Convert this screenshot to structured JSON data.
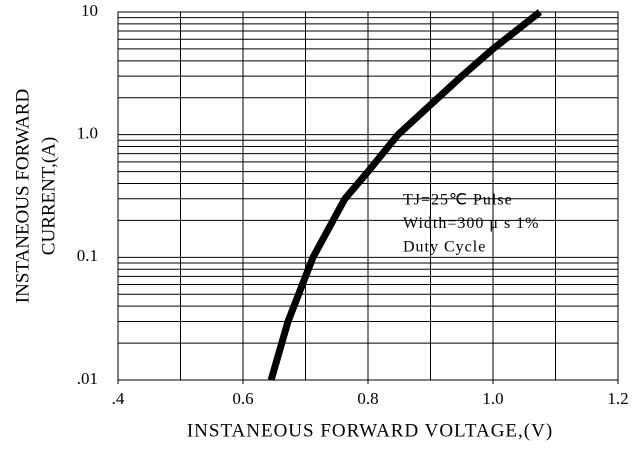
{
  "chart_data": {
    "type": "line",
    "xlabel": "INSTANEOUS FORWARD VOLTAGE,(V)",
    "ylabel": [
      "INSTANEOUS FORWARD",
      "CURRENT,(A)"
    ],
    "annotation": [
      "TJ=25℃ Pulse",
      "Width=300 μ s 1%",
      "Duty Cycle"
    ],
    "x": [
      0.645,
      0.672,
      0.712,
      0.763,
      0.8,
      0.848,
      0.95,
      1.0,
      1.075
    ],
    "series": [
      {
        "color": "#000000",
        "values": [
          0.01,
          0.03,
          0.1,
          0.3,
          0.5,
          1.0,
          3,
          5,
          10
        ]
      }
    ],
    "xlim": [
      0.4,
      1.2
    ],
    "xticks": [
      {
        "value": 0.4,
        "label": ".4"
      },
      0.6,
      0.8,
      {
        "value": 1.0,
        "label": "1.0"
      },
      1.2
    ],
    "xgrid": [
      0.4,
      0.5,
      0.6,
      0.7,
      0.8,
      0.9,
      1.0,
      1.1,
      1.2
    ],
    "ylim": [
      0.01,
      10
    ],
    "yticks": [
      {
        "value": 0.01,
        "label": ".01"
      },
      0.1,
      {
        "value": 1.0,
        "label": "1.0"
      },
      10
    ],
    "ylog": true,
    "minor_grid": true,
    "grid": true
  }
}
